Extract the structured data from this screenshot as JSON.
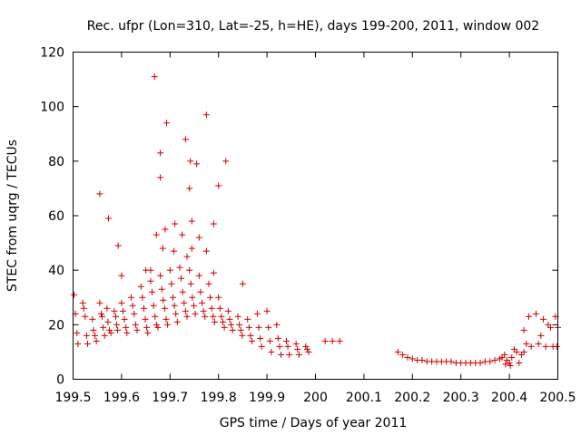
{
  "chart_data": {
    "type": "scatter",
    "title": "Rec. ufpr (Lon=310, Lat=-25, h=HE), days 199-200, 2011, window 002",
    "xlabel": "GPS time / Days of year 2011",
    "ylabel": "STEC from uqrg / TECUs",
    "xlim": [
      199.5,
      200.5
    ],
    "ylim": [
      0,
      120
    ],
    "xticks": [
      199.5,
      199.6,
      199.7,
      199.8,
      199.9,
      200,
      200.1,
      200.2,
      200.3,
      200.4,
      200.5
    ],
    "xtick_labels": [
      "199.5",
      "199.6",
      "199.7",
      "199.8",
      "199.9",
      "200",
      "200.1",
      "200.2",
      "200.3",
      "200.4",
      "200.5"
    ],
    "yticks": [
      0,
      20,
      40,
      60,
      80,
      100,
      120
    ],
    "ytick_labels": [
      "0",
      "20",
      "40",
      "60",
      "80",
      "100",
      "120"
    ],
    "marker": "+",
    "color": "#cc0000",
    "grid": false,
    "points": [
      [
        199.502,
        31
      ],
      [
        199.505,
        24
      ],
      [
        199.508,
        17
      ],
      [
        199.51,
        13
      ],
      [
        199.52,
        28
      ],
      [
        199.522,
        26
      ],
      [
        199.525,
        23
      ],
      [
        199.528,
        16
      ],
      [
        199.53,
        13
      ],
      [
        199.54,
        22
      ],
      [
        199.542,
        18
      ],
      [
        199.545,
        16
      ],
      [
        199.548,
        14
      ],
      [
        199.555,
        28
      ],
      [
        199.558,
        24
      ],
      [
        199.56,
        23
      ],
      [
        199.562,
        19
      ],
      [
        199.565,
        16
      ],
      [
        199.57,
        26
      ],
      [
        199.572,
        21
      ],
      [
        199.575,
        18
      ],
      [
        199.578,
        17
      ],
      [
        199.585,
        25
      ],
      [
        199.588,
        23
      ],
      [
        199.59,
        20
      ],
      [
        199.592,
        18
      ],
      [
        199.6,
        28
      ],
      [
        199.603,
        25
      ],
      [
        199.606,
        22
      ],
      [
        199.609,
        19
      ],
      [
        199.611,
        17
      ],
      [
        199.62,
        30
      ],
      [
        199.623,
        27
      ],
      [
        199.626,
        24
      ],
      [
        199.629,
        20
      ],
      [
        199.632,
        18
      ],
      [
        199.64,
        34
      ],
      [
        199.643,
        30
      ],
      [
        199.646,
        26
      ],
      [
        199.649,
        22
      ],
      [
        199.652,
        19
      ],
      [
        199.654,
        17
      ],
      [
        199.66,
        36
      ],
      [
        199.663,
        32
      ],
      [
        199.666,
        27
      ],
      [
        199.669,
        23
      ],
      [
        199.672,
        20
      ],
      [
        199.675,
        19
      ],
      [
        199.68,
        38
      ],
      [
        199.683,
        33
      ],
      [
        199.686,
        29
      ],
      [
        199.689,
        26
      ],
      [
        199.692,
        22
      ],
      [
        199.695,
        20
      ],
      [
        199.7,
        40
      ],
      [
        199.703,
        35
      ],
      [
        199.706,
        30
      ],
      [
        199.709,
        27
      ],
      [
        199.712,
        24
      ],
      [
        199.715,
        21
      ],
      [
        199.72,
        41
      ],
      [
        199.723,
        37
      ],
      [
        199.726,
        32
      ],
      [
        199.729,
        28
      ],
      [
        199.732,
        25
      ],
      [
        199.735,
        23
      ],
      [
        199.74,
        40
      ],
      [
        199.743,
        35
      ],
      [
        199.746,
        30
      ],
      [
        199.749,
        27
      ],
      [
        199.752,
        24
      ],
      [
        199.76,
        38
      ],
      [
        199.763,
        32
      ],
      [
        199.766,
        28
      ],
      [
        199.769,
        25
      ],
      [
        199.772,
        23
      ],
      [
        199.78,
        35
      ],
      [
        199.783,
        30
      ],
      [
        199.786,
        26
      ],
      [
        199.789,
        23
      ],
      [
        199.792,
        21
      ],
      [
        199.8,
        30
      ],
      [
        199.803,
        26
      ],
      [
        199.806,
        23
      ],
      [
        199.809,
        21
      ],
      [
        199.812,
        19
      ],
      [
        199.82,
        25
      ],
      [
        199.823,
        22
      ],
      [
        199.826,
        20
      ],
      [
        199.829,
        18
      ],
      [
        199.84,
        23
      ],
      [
        199.843,
        20
      ],
      [
        199.846,
        18
      ],
      [
        199.849,
        16
      ],
      [
        199.86,
        22
      ],
      [
        199.863,
        19
      ],
      [
        199.866,
        16
      ],
      [
        199.869,
        14
      ],
      [
        199.88,
        24
      ],
      [
        199.883,
        19
      ],
      [
        199.886,
        15
      ],
      [
        199.889,
        12
      ],
      [
        199.9,
        25
      ],
      [
        199.903,
        19
      ],
      [
        199.906,
        14
      ],
      [
        199.909,
        10
      ],
      [
        199.92,
        20
      ],
      [
        199.923,
        15
      ],
      [
        199.926,
        12
      ],
      [
        199.929,
        9
      ],
      [
        199.94,
        14
      ],
      [
        199.943,
        12
      ],
      [
        199.946,
        9
      ],
      [
        199.96,
        13
      ],
      [
        199.963,
        11
      ],
      [
        199.966,
        9
      ],
      [
        199.98,
        12
      ],
      [
        199.983,
        11
      ],
      [
        199.986,
        10
      ],
      [
        199.573,
        59
      ],
      [
        199.555,
        68
      ],
      [
        199.593,
        49
      ],
      [
        199.6,
        38
      ],
      [
        199.668,
        111
      ],
      [
        199.68,
        83
      ],
      [
        199.68,
        74
      ],
      [
        199.693,
        94
      ],
      [
        199.71,
        57
      ],
      [
        199.69,
        55
      ],
      [
        199.672,
        53
      ],
      [
        199.685,
        48
      ],
      [
        199.725,
        53
      ],
      [
        199.732,
        88
      ],
      [
        199.742,
        80
      ],
      [
        199.74,
        70
      ],
      [
        199.755,
        79
      ],
      [
        199.775,
        97
      ],
      [
        199.8,
        71
      ],
      [
        199.815,
        80
      ],
      [
        199.79,
        57
      ],
      [
        199.76,
        52
      ],
      [
        199.775,
        47
      ],
      [
        199.745,
        58
      ],
      [
        199.745,
        48
      ],
      [
        199.708,
        47
      ],
      [
        199.65,
        40
      ],
      [
        199.66,
        40
      ],
      [
        199.85,
        35
      ],
      [
        199.79,
        39
      ],
      [
        199.735,
        45
      ],
      [
        200.02,
        14
      ],
      [
        200.035,
        14
      ],
      [
        200.05,
        14
      ],
      [
        200.17,
        10
      ],
      [
        200.18,
        9
      ],
      [
        200.19,
        8
      ],
      [
        200.2,
        7.5
      ],
      [
        200.21,
        7
      ],
      [
        200.22,
        7
      ],
      [
        200.23,
        6.5
      ],
      [
        200.24,
        6.5
      ],
      [
        200.25,
        6.5
      ],
      [
        200.26,
        6.5
      ],
      [
        200.27,
        6.5
      ],
      [
        200.28,
        6.5
      ],
      [
        200.29,
        6
      ],
      [
        200.3,
        6
      ],
      [
        200.31,
        6
      ],
      [
        200.32,
        6
      ],
      [
        200.33,
        6
      ],
      [
        200.34,
        6
      ],
      [
        200.35,
        6.5
      ],
      [
        200.36,
        6.5
      ],
      [
        200.37,
        7
      ],
      [
        200.38,
        7.5
      ],
      [
        200.385,
        8
      ],
      [
        200.39,
        9
      ],
      [
        200.395,
        7
      ],
      [
        200.4,
        6
      ],
      [
        200.405,
        8
      ],
      [
        200.41,
        11
      ],
      [
        200.42,
        6
      ],
      [
        200.425,
        9
      ],
      [
        200.43,
        18
      ],
      [
        200.435,
        13
      ],
      [
        200.44,
        23
      ],
      [
        200.445,
        12
      ],
      [
        200.455,
        24
      ],
      [
        200.46,
        13
      ],
      [
        200.465,
        16
      ],
      [
        200.47,
        22
      ],
      [
        200.475,
        12
      ],
      [
        200.48,
        20
      ],
      [
        200.485,
        19
      ],
      [
        200.49,
        12
      ],
      [
        200.495,
        23
      ],
      [
        200.5,
        19
      ],
      [
        200.498,
        12
      ],
      [
        200.392,
        5.5
      ],
      [
        200.402,
        5
      ],
      [
        200.415,
        10
      ],
      [
        200.43,
        10
      ]
    ]
  }
}
